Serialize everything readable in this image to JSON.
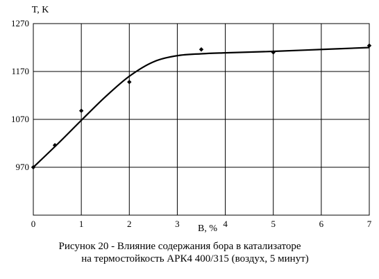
{
  "chart_data": {
    "type": "line",
    "ylabel": "T, K",
    "xlabel": "B, %",
    "xlim": [
      0,
      7
    ],
    "ylim": [
      870,
      1270
    ],
    "x_ticks": [
      0,
      1,
      2,
      3,
      4,
      5,
      6,
      7
    ],
    "y_ticks": [
      970,
      1070,
      1170,
      1270
    ],
    "grid": true,
    "series": [
      {
        "kind": "scatter",
        "x": [
          0,
          0.45,
          1.0,
          2.0,
          3.5,
          5.0,
          7.0
        ],
        "y": [
          970,
          1016,
          1088,
          1148,
          1216,
          1210,
          1224
        ]
      },
      {
        "kind": "line",
        "x": [
          0,
          0.5,
          1.0,
          1.5,
          2.0,
          2.5,
          3.0,
          3.5,
          4.0,
          5.0,
          6.0,
          7.0
        ],
        "y": [
          970,
          1018,
          1068,
          1117,
          1160,
          1190,
          1203,
          1207,
          1209,
          1212,
          1216,
          1220
        ]
      }
    ]
  },
  "caption": {
    "line1": "Рисунок 20 - Влияние содержания бора в катализаторе",
    "line2": "на термостойкость АРК4 400/315 (воздух, 5 минут)"
  }
}
